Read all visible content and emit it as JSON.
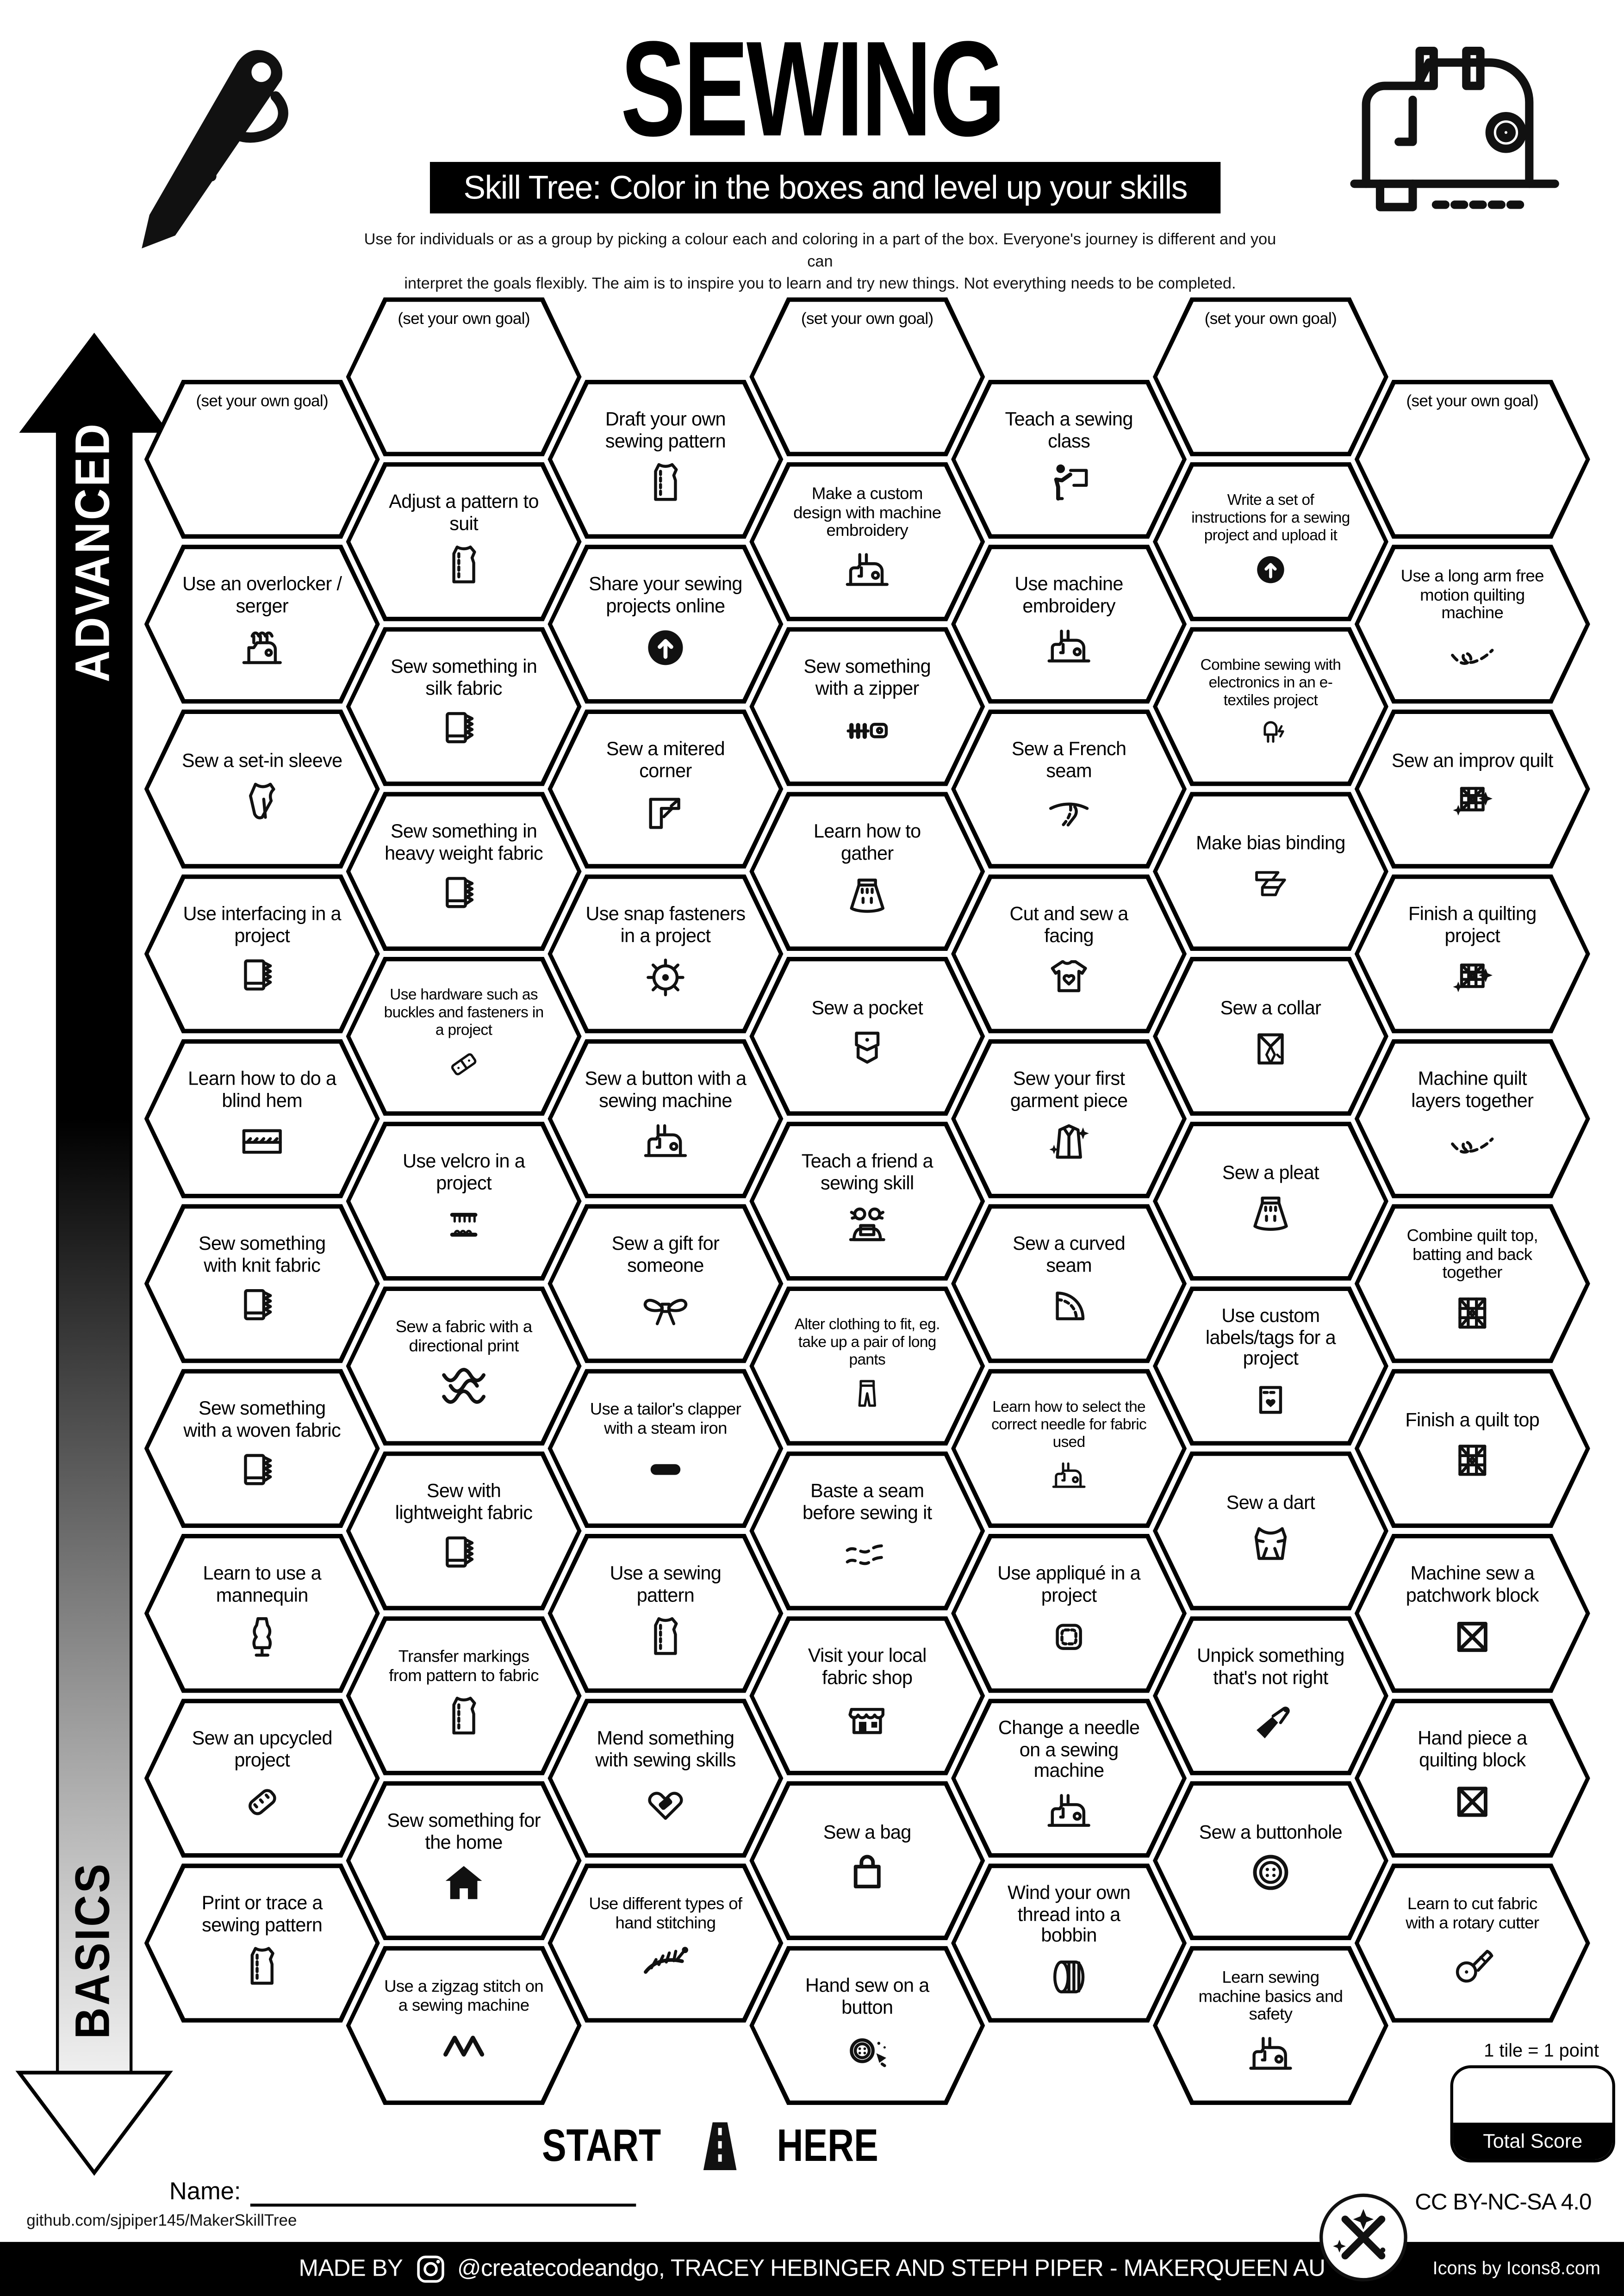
{
  "header": {
    "title": "SEWING",
    "banner": "Skill Tree:  Color in the boxes and level up your skills",
    "subtitle_line1": "Use for individuals or as a group by picking a colour each and coloring in a part of the box.  Everyone's journey is different and you can",
    "subtitle_line2": "interpret the goals flexibly.  The aim is to inspire you to learn and try new things. Not everything needs to be completed.",
    "left_icon": "needle-thread-icon",
    "right_icon": "sewing-machine-icon"
  },
  "axis": {
    "top_label": "ADVANCED",
    "bottom_label": "BASICS"
  },
  "start": {
    "start_label": "START",
    "here_label": "HERE",
    "icon": "road-icon"
  },
  "footer": {
    "name_label": "Name:",
    "github": "github.com/sjpiper145/MakerSkillTree",
    "tile_points": "1 tile = 1 point",
    "total_score_label": "Total Score",
    "license": "CC BY-NC-SA 4.0",
    "made_by": "MADE BY",
    "made_by_rest": "@createcodeandgo, TRACEY HEBINGER AND STEPH PIPER - MAKERQUEEN AU",
    "icons_credit": "Icons by Icons8.com",
    "logo_icon": "makerqueen-logo-icon",
    "instagram_icon": "instagram-icon"
  },
  "colors": {
    "ink": "#000000",
    "paper": "#ffffff"
  },
  "hexes": [
    {
      "c": 1,
      "r": 0,
      "goal": true,
      "label": "(set your own goal)"
    },
    {
      "c": 1,
      "r": 1,
      "label": "Use an overlocker / serger",
      "icon": "serger-icon"
    },
    {
      "c": 1,
      "r": 2,
      "label": "Sew a set-in sleeve",
      "icon": "sleeve-icon"
    },
    {
      "c": 1,
      "r": 3,
      "label": "Use interfacing in a project",
      "icon": "fabric-icon"
    },
    {
      "c": 1,
      "r": 4,
      "label": "Learn how to do a blind hem",
      "icon": "blind-hem-icon"
    },
    {
      "c": 1,
      "r": 5,
      "label": "Sew something with knit fabric",
      "icon": "fabric-icon"
    },
    {
      "c": 1,
      "r": 6,
      "label": "Sew something with a woven fabric",
      "icon": "fabric-icon"
    },
    {
      "c": 1,
      "r": 7,
      "label": "Learn to use a mannequin",
      "icon": "mannequin-icon"
    },
    {
      "c": 1,
      "r": 8,
      "label": "Sew an upcycled project",
      "icon": "patch-icon"
    },
    {
      "c": 1,
      "r": 9,
      "label": "Print or trace a sewing pattern",
      "icon": "pattern-icon"
    },
    {
      "c": 2,
      "r": 0,
      "goal": true,
      "label": "(set your own goal)"
    },
    {
      "c": 2,
      "r": 1,
      "label": "Adjust a pattern to suit",
      "icon": "pattern-icon"
    },
    {
      "c": 2,
      "r": 2,
      "label": "Sew something in silk fabric",
      "icon": "fabric-icon"
    },
    {
      "c": 2,
      "r": 3,
      "label": "Sew something in heavy weight fabric",
      "icon": "fabric-icon"
    },
    {
      "c": 2,
      "r": 4,
      "label": "Use hardware such as buckles and fasteners in a project",
      "icon": "buckle-icon"
    },
    {
      "c": 2,
      "r": 5,
      "label": "Use velcro in a project",
      "icon": "velcro-icon"
    },
    {
      "c": 2,
      "r": 6,
      "label": "Sew a fabric with a directional print",
      "icon": "scales-icon"
    },
    {
      "c": 2,
      "r": 7,
      "label": "Sew with lightweight fabric",
      "icon": "fabric-icon"
    },
    {
      "c": 2,
      "r": 8,
      "label": "Transfer markings from pattern to fabric",
      "icon": "pattern-icon"
    },
    {
      "c": 2,
      "r": 9,
      "label": "Sew something for the home",
      "icon": "house-icon"
    },
    {
      "c": 2,
      "r": 10,
      "label": "Use a zigzag stitch on a sewing machine",
      "icon": "zigzag-icon"
    },
    {
      "c": 3,
      "r": 0,
      "label": "Draft your own sewing pattern",
      "icon": "pattern-icon"
    },
    {
      "c": 3,
      "r": 1,
      "label": "Share your sewing projects online",
      "icon": "upload-icon"
    },
    {
      "c": 3,
      "r": 2,
      "label": "Sew a mitered corner",
      "icon": "miter-icon"
    },
    {
      "c": 3,
      "r": 3,
      "label": "Use snap fasteners in a project",
      "icon": "snap-icon"
    },
    {
      "c": 3,
      "r": 4,
      "label": "Sew a button with a sewing machine",
      "icon": "machine-icon"
    },
    {
      "c": 3,
      "r": 5,
      "label": "Sew a gift for someone",
      "icon": "bow-icon"
    },
    {
      "c": 3,
      "r": 6,
      "label": "Use a tailor's clapper with a steam iron",
      "icon": "iron-icon"
    },
    {
      "c": 3,
      "r": 7,
      "label": "Use a sewing pattern",
      "icon": "pattern-icon"
    },
    {
      "c": 3,
      "r": 8,
      "label": "Mend something with sewing skills",
      "icon": "heart-patch-icon"
    },
    {
      "c": 3,
      "r": 9,
      "label": "Use different types of hand stitching",
      "icon": "hand-stitch-icon"
    },
    {
      "c": 4,
      "r": 0,
      "goal": true,
      "label": "(set your own goal)"
    },
    {
      "c": 4,
      "r": 1,
      "label": "Make a custom design with machine embroidery",
      "icon": "machine-icon"
    },
    {
      "c": 4,
      "r": 2,
      "label": "Sew something with a zipper",
      "icon": "zipper-icon"
    },
    {
      "c": 4,
      "r": 3,
      "label": "Learn how to gather",
      "icon": "skirt-icon"
    },
    {
      "c": 4,
      "r": 4,
      "label": "Sew a pocket",
      "icon": "pocket-icon"
    },
    {
      "c": 4,
      "r": 5,
      "label": "Teach a friend a sewing skill",
      "icon": "friends-icon"
    },
    {
      "c": 4,
      "r": 6,
      "label": "Alter clothing to fit, eg. take up a pair of long pants",
      "icon": "pants-icon"
    },
    {
      "c": 4,
      "r": 7,
      "label": "Baste a seam before sewing it",
      "icon": "dashes-icon"
    },
    {
      "c": 4,
      "r": 8,
      "label": "Visit your local fabric shop",
      "icon": "store-icon"
    },
    {
      "c": 4,
      "r": 9,
      "label": "Sew a bag",
      "icon": "bag-icon"
    },
    {
      "c": 4,
      "r": 10,
      "label": "Hand sew on a button",
      "icon": "button-party-icon"
    },
    {
      "c": 5,
      "r": 0,
      "label": "Teach a sewing class",
      "icon": "teach-icon"
    },
    {
      "c": 5,
      "r": 1,
      "label": "Use machine embroidery",
      "icon": "machine-icon"
    },
    {
      "c": 5,
      "r": 2,
      "label": "Sew a French seam",
      "icon": "french-seam-icon"
    },
    {
      "c": 5,
      "r": 3,
      "label": "Cut and sew a facing",
      "icon": "tshirt-heart-icon"
    },
    {
      "c": 5,
      "r": 4,
      "label": "Sew your first garment piece",
      "icon": "garment-sparkle-icon"
    },
    {
      "c": 5,
      "r": 5,
      "label": "Sew a curved seam",
      "icon": "curve-icon"
    },
    {
      "c": 5,
      "r": 6,
      "label": "Learn how to select the correct needle for fabric used",
      "icon": "machine-icon"
    },
    {
      "c": 5,
      "r": 7,
      "label": "Use appliqué in a project",
      "icon": "applique-icon"
    },
    {
      "c": 5,
      "r": 8,
      "label": "Change a needle on a sewing machine",
      "icon": "machine-icon"
    },
    {
      "c": 5,
      "r": 9,
      "label": "Wind your own thread into a bobbin",
      "icon": "bobbin-icon"
    },
    {
      "c": 6,
      "r": 0,
      "goal": true,
      "label": "(set your own goal)"
    },
    {
      "c": 6,
      "r": 1,
      "label": "Write a set of instructions for a sewing project and upload it",
      "icon": "upload-icon"
    },
    {
      "c": 6,
      "r": 2,
      "label": "Combine sewing with electronics in an e-textiles project",
      "icon": "led-icon"
    },
    {
      "c": 6,
      "r": 3,
      "label": "Make bias binding",
      "icon": "bias-icon"
    },
    {
      "c": 6,
      "r": 4,
      "label": "Sew a collar",
      "icon": "collar-icon"
    },
    {
      "c": 6,
      "r": 5,
      "label": "Sew a pleat",
      "icon": "skirt-icon"
    },
    {
      "c": 6,
      "r": 6,
      "label": "Use custom labels/tags for a project",
      "icon": "tag-icon"
    },
    {
      "c": 6,
      "r": 7,
      "label": "Sew a dart",
      "icon": "dart-icon"
    },
    {
      "c": 6,
      "r": 8,
      "label": "Unpick something that's not right",
      "icon": "ripper-icon"
    },
    {
      "c": 6,
      "r": 9,
      "label": "Sew a buttonhole",
      "icon": "button-icon"
    },
    {
      "c": 6,
      "r": 10,
      "label": "Learn sewing machine basics and safety",
      "icon": "machine-icon"
    },
    {
      "c": 7,
      "r": 0,
      "goal": true,
      "label": "(set your own goal)"
    },
    {
      "c": 7,
      "r": 1,
      "label": "Use a long arm free motion quilting machine",
      "icon": "free-motion-icon"
    },
    {
      "c": 7,
      "r": 2,
      "label": "Sew an improv quilt",
      "icon": "quilt-sparkle-icon"
    },
    {
      "c": 7,
      "r": 3,
      "label": "Finish a quilting project",
      "icon": "quilt-sparkle-icon"
    },
    {
      "c": 7,
      "r": 4,
      "label": "Machine quilt layers together",
      "icon": "free-motion-icon"
    },
    {
      "c": 7,
      "r": 5,
      "label": "Combine quilt top, batting and back together",
      "icon": "quilt-icon"
    },
    {
      "c": 7,
      "r": 6,
      "label": "Finish a quilt top",
      "icon": "quilt-icon"
    },
    {
      "c": 7,
      "r": 7,
      "label": "Machine sew a patchwork block",
      "icon": "xblock-icon"
    },
    {
      "c": 7,
      "r": 8,
      "label": "Hand piece a quilting block",
      "icon": "xblock-icon"
    },
    {
      "c": 7,
      "r": 9,
      "label": "Learn to cut fabric with a rotary cutter",
      "icon": "rotary-icon"
    }
  ]
}
